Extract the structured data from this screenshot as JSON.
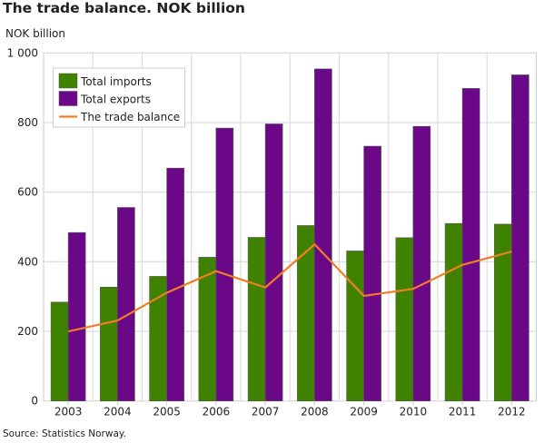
{
  "chart_data": {
    "type": "bar",
    "title": "The trade balance. NOK billion",
    "ylabel": "NOK billion",
    "xlabel": "",
    "ylim": [
      0,
      1000
    ],
    "yticks": [
      0,
      200,
      400,
      600,
      800,
      1000
    ],
    "ytick_labels": [
      "0",
      "200",
      "400",
      "600",
      "800",
      "1 000"
    ],
    "grid": true,
    "legend_position": "top-left",
    "categories": [
      "2003",
      "2004",
      "2005",
      "2006",
      "2007",
      "2008",
      "2009",
      "2010",
      "2011",
      "2012"
    ],
    "series": [
      {
        "name": "Total imports",
        "kind": "bar",
        "color": "#3f8200",
        "values": [
          284,
          327,
          358,
          413,
          470,
          504,
          431,
          469,
          510,
          508
        ]
      },
      {
        "name": "Total exports",
        "kind": "bar",
        "color": "#6a0888",
        "values": [
          484,
          556,
          669,
          784,
          796,
          954,
          732,
          789,
          898,
          937
        ]
      },
      {
        "name": "The trade balance",
        "kind": "line",
        "color": "#f07f23",
        "values": [
          200,
          231,
          311,
          373,
          326,
          450,
          302,
          322,
          391,
          429
        ]
      }
    ],
    "source": "Source: Statistics Norway."
  }
}
